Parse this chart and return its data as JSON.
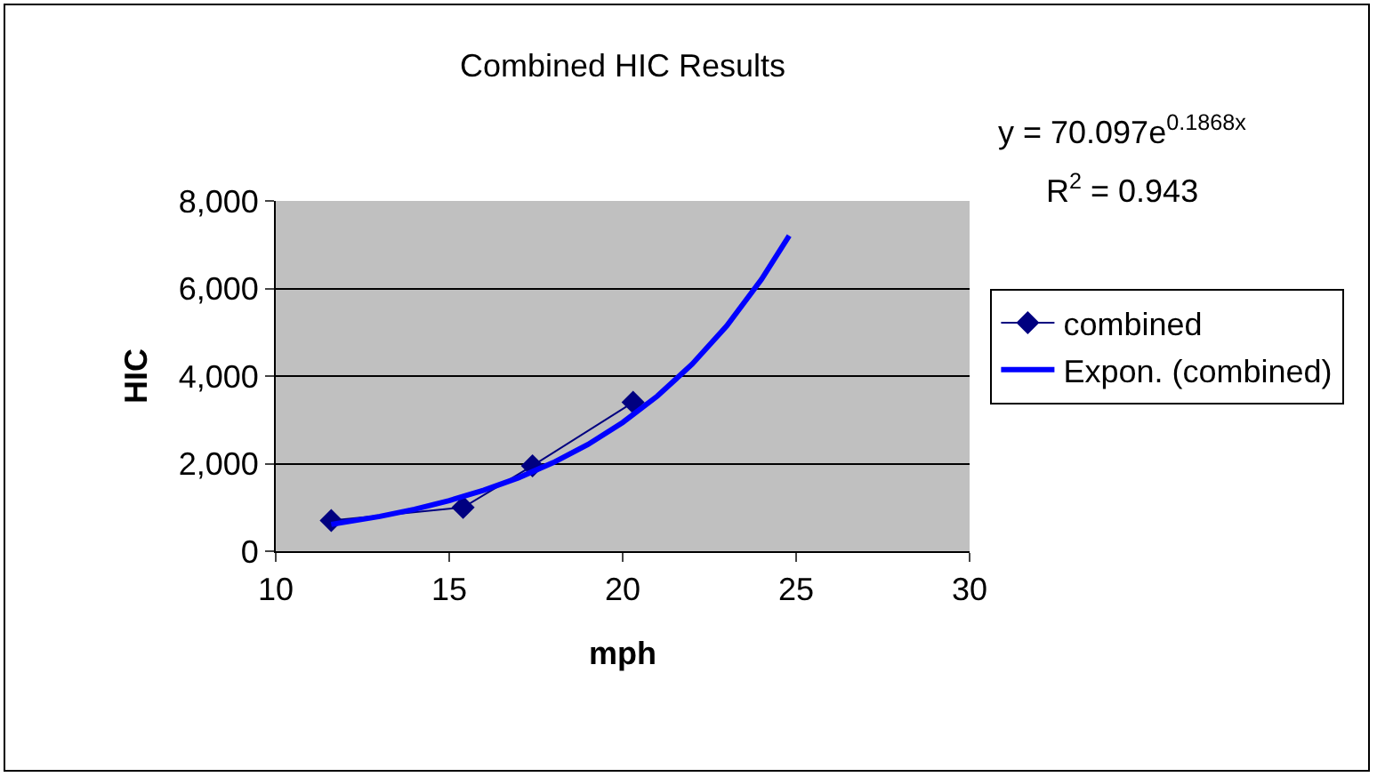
{
  "chart_data": {
    "type": "line",
    "title": "Combined HIC Results",
    "xlabel": "mph",
    "ylabel": "HIC",
    "annotations": [
      "y = 70.097e$^{0.1868x}$",
      "R$^{2}$ = 0.943"
    ],
    "series": [
      {
        "name": "combined",
        "color": "#000080",
        "marker": "diamond",
        "x": [
          11.6,
          15.4,
          17.4,
          20.3
        ],
        "values": [
          700,
          1000,
          1950,
          3400
        ]
      },
      {
        "name": "Expon. (combined)",
        "color": "#0000ff",
        "marker": "none",
        "x": [
          11.6,
          13,
          14,
          15,
          16,
          17,
          18,
          19,
          20,
          21,
          22,
          23,
          24,
          24.8
        ],
        "values": [
          612,
          795,
          958,
          1155,
          1392,
          1678,
          2023,
          2438,
          2939,
          3542,
          4270,
          5147,
          6205,
          7204
        ]
      }
    ],
    "xlim": [
      10,
      30
    ],
    "xticks": [
      10,
      15,
      20,
      25,
      30
    ],
    "ylim": [
      0,
      8000
    ],
    "yticks": [
      0,
      {
        "value": 2000,
        "label": "2,000"
      },
      {
        "value": 4000,
        "label": "4,000"
      },
      {
        "value": 6000,
        "label": "6,000"
      },
      {
        "value": 8000,
        "label": "8,000"
      }
    ],
    "grid": "y",
    "legend": "right",
    "line_style": "solid"
  }
}
